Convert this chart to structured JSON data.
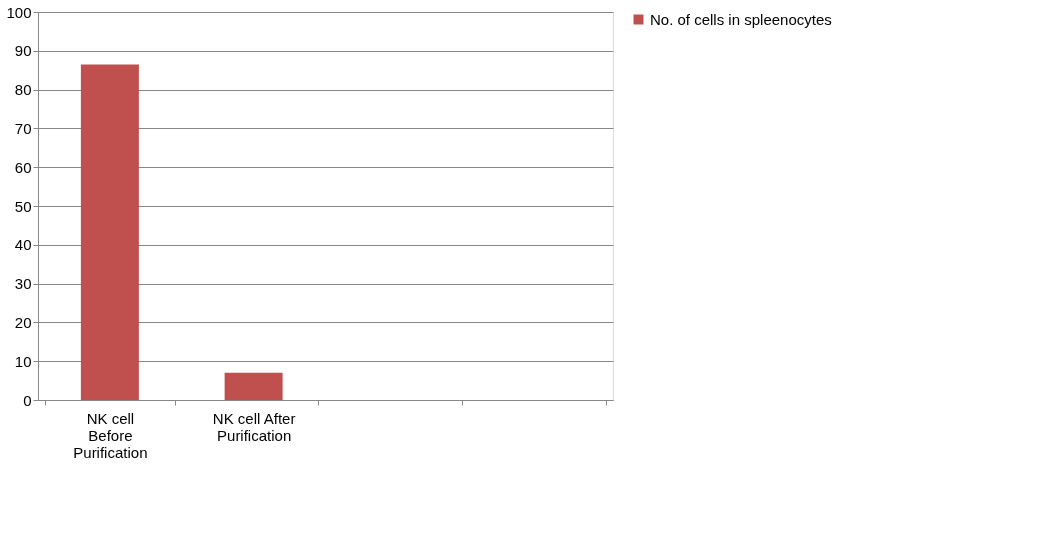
{
  "chart_data": {
    "type": "bar",
    "categories": [
      "NK cell Before Purification",
      "NK cell After Purification",
      null,
      null
    ],
    "series": [
      {
        "name": "No. of cells in spleenocytes",
        "color": "#c0504d",
        "values": [
          86.5,
          7,
          null,
          null
        ]
      }
    ],
    "ylim": [
      0,
      100
    ],
    "yticks": [
      0,
      10,
      20,
      30,
      40,
      50,
      60,
      70,
      80,
      90,
      100
    ],
    "grid": "y",
    "legend": "right"
  }
}
